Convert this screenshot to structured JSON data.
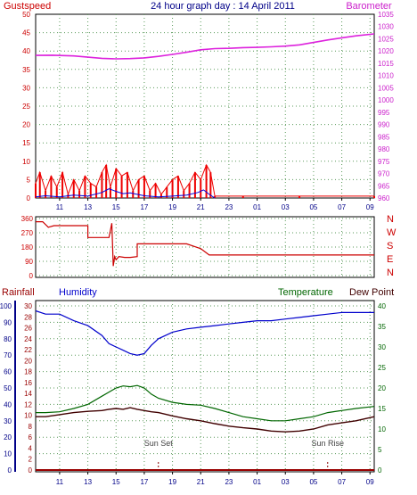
{
  "title": "24 hour graph day : 14 April 2011",
  "colors": {
    "gust": "#ee0000",
    "wind": "#0000dd",
    "baro": "#dd22dd",
    "dir": "#cc0000",
    "rain": "#990000",
    "humidity": "#0000cc",
    "temp": "#006600",
    "dew": "#400000",
    "axis_dark": "#000088",
    "axis_green": "#006600"
  },
  "chart_data": [
    {
      "type": "line",
      "title": "24 hour graph day : 14 April 2011",
      "left_label": "Gustspeed",
      "right_label": "Barometer",
      "left_ticks": [
        "0",
        "5",
        "10",
        "15",
        "20",
        "25",
        "30",
        "35",
        "40",
        "45",
        "50"
      ],
      "right_ticks": [
        "960",
        "965",
        "970",
        "975",
        "980",
        "985",
        "990",
        "995",
        "1000",
        "1005",
        "1010",
        "1015",
        "1020",
        "1025",
        "1030",
        "1035"
      ],
      "x_ticks": [
        "11",
        "13",
        "15",
        "17",
        "19",
        "21",
        "23",
        "01",
        "03",
        "05",
        "07",
        "09"
      ],
      "ylim_left": [
        0,
        50
      ],
      "ylim_right": [
        960,
        1035
      ],
      "series": [
        {
          "name": "Barometer",
          "axis": "right",
          "x": [
            9.3,
            10.5,
            12,
            13,
            14,
            15,
            16,
            17,
            18,
            19,
            20,
            21,
            22,
            23,
            24,
            25,
            26,
            27,
            28,
            29,
            30,
            31,
            32,
            33.3
          ],
          "y": [
            1018.2,
            1018.3,
            1018.0,
            1017.5,
            1017.0,
            1016.8,
            1016.9,
            1017.2,
            1017.8,
            1018.6,
            1019.5,
            1020.5,
            1021.0,
            1021.1,
            1021.4,
            1021.5,
            1021.7,
            1022.0,
            1022.5,
            1023.5,
            1024.5,
            1025.4,
            1026.2,
            1027.0
          ]
        },
        {
          "name": "Gustspeed",
          "axis": "left",
          "x": [
            9.3,
            9.6,
            10,
            10.4,
            10.8,
            11.2,
            11.6,
            12,
            12.4,
            12.8,
            13.2,
            13.6,
            14,
            14.3,
            14.6,
            15,
            15.4,
            15.8,
            16.2,
            16.6,
            17,
            17.4,
            17.8,
            18.2,
            18.6,
            19,
            19.4,
            19.8,
            20.2,
            20.6,
            21,
            21.4,
            21.7,
            22,
            24,
            28,
            33.3
          ],
          "y": [
            4,
            7,
            2,
            6,
            3,
            7,
            1,
            5,
            2,
            6,
            4,
            3,
            7,
            9,
            3,
            8,
            6,
            7,
            2,
            5,
            6,
            2,
            4,
            1,
            3,
            5,
            6,
            2,
            4,
            7,
            5,
            9,
            7,
            0.5,
            0.5,
            0.5,
            0.5
          ]
        },
        {
          "name": "Windspeed",
          "axis": "left",
          "x": [
            9.3,
            10,
            11,
            12,
            13,
            14,
            14.5,
            15,
            15.5,
            16,
            17,
            18,
            19,
            20,
            20.8,
            21.2,
            21.6,
            22
          ],
          "y": [
            0.3,
            0.6,
            0.3,
            0.8,
            0.5,
            1.5,
            2.5,
            1.8,
            1.2,
            1.4,
            0.6,
            0.3,
            0.5,
            0.8,
            1.5,
            2.2,
            1.0,
            0
          ]
        }
      ]
    },
    {
      "type": "line",
      "left_ticks": [
        "360",
        "270",
        "180",
        "90",
        "0"
      ],
      "right_labels": [
        "N",
        "W",
        "S",
        "E",
        "N"
      ],
      "ylim": [
        0,
        360
      ],
      "series": [
        {
          "name": "Wind direction",
          "x": [
            9.3,
            9.8,
            10.2,
            10.6,
            13.0,
            13.0,
            14.5,
            14.7,
            14.8,
            14.9,
            15.0,
            15.2,
            15.6,
            16.0,
            16.5,
            16.5,
            20.0,
            20.5,
            21.0,
            21.6,
            33.3
          ],
          "y": [
            340,
            340,
            305,
            315,
            315,
            240,
            240,
            330,
            60,
            120,
            100,
            120,
            115,
            115,
            120,
            200,
            200,
            185,
            170,
            130,
            130
          ]
        }
      ]
    },
    {
      "type": "line",
      "left_label_1": "Rainfall",
      "left_label_2": "Humidity",
      "right_label_1": "Temperature",
      "right_label_2": "Dew Point",
      "humidity_ticks": [
        "0",
        "10",
        "20",
        "30",
        "40",
        "50",
        "60",
        "70",
        "80",
        "90",
        "100"
      ],
      "rain_ticks": [
        "0",
        "2",
        "4",
        "6",
        "8",
        "10",
        "12",
        "14",
        "16",
        "18",
        "20",
        "22",
        "24",
        "26",
        "28",
        "30"
      ],
      "temp_ticks": [
        "0",
        "5",
        "10",
        "15",
        "20",
        "25",
        "30",
        "35",
        "40"
      ],
      "x_ticks": [
        "11",
        "13",
        "15",
        "17",
        "19",
        "21",
        "23",
        "01",
        "03",
        "05",
        "07",
        "09"
      ],
      "annotations": [
        "Sun Set",
        "Sun Rise"
      ],
      "annotation_x": [
        18.0,
        30.0
      ],
      "ylim_humidity": [
        0,
        100
      ],
      "ylim_temp": [
        0,
        40
      ],
      "series": [
        {
          "name": "Humidity",
          "axis": "humidity",
          "x": [
            9.3,
            10,
            11,
            12,
            13,
            14,
            14.5,
            15,
            15.5,
            16,
            16.5,
            17,
            17.5,
            18,
            19,
            20,
            21,
            22,
            23,
            24,
            25,
            26,
            27,
            28,
            29,
            30,
            31,
            32,
            33.3
          ],
          "y": [
            97,
            95,
            95,
            91,
            88,
            82,
            77,
            75,
            73,
            71,
            70,
            71,
            76,
            80,
            84,
            86,
            87,
            88,
            89,
            90,
            91,
            91,
            92,
            93,
            94,
            95,
            96,
            96,
            96
          ]
        },
        {
          "name": "Temperature",
          "axis": "temp",
          "x": [
            9.3,
            10,
            11,
            12,
            13,
            14,
            14.5,
            15,
            15.5,
            16,
            16.5,
            17,
            17.5,
            18,
            19,
            20,
            21,
            22,
            23,
            24,
            25,
            26,
            27,
            28,
            29,
            30,
            31,
            32,
            33.3
          ],
          "y": [
            14,
            14,
            14.2,
            15,
            16,
            18,
            19,
            20,
            20.5,
            20.3,
            20.6,
            20,
            18.5,
            17.5,
            16.5,
            16,
            15.8,
            15,
            14,
            13,
            12.5,
            12,
            12,
            12.5,
            13,
            14,
            14.5,
            15,
            15.5
          ]
        },
        {
          "name": "Dew Point",
          "axis": "temp",
          "x": [
            9.3,
            10,
            11,
            12,
            13,
            14,
            14.5,
            15,
            15.5,
            16,
            16.5,
            17,
            17.5,
            18,
            19,
            20,
            21,
            22,
            23,
            24,
            25,
            26,
            27,
            28,
            29,
            30,
            31,
            32,
            33.3
          ],
          "y": [
            13,
            13,
            13.5,
            14,
            14.3,
            14.5,
            14.8,
            15,
            14.8,
            15.2,
            14.8,
            14.5,
            14.2,
            14,
            13.2,
            12.5,
            12,
            11.3,
            10.7,
            10.3,
            10,
            9.5,
            9.3,
            9.5,
            10,
            11,
            11.5,
            12,
            13
          ]
        },
        {
          "name": "Rainfall",
          "axis": "rain",
          "x": [
            9.3,
            33.3
          ],
          "y": [
            0,
            0
          ]
        }
      ]
    }
  ]
}
